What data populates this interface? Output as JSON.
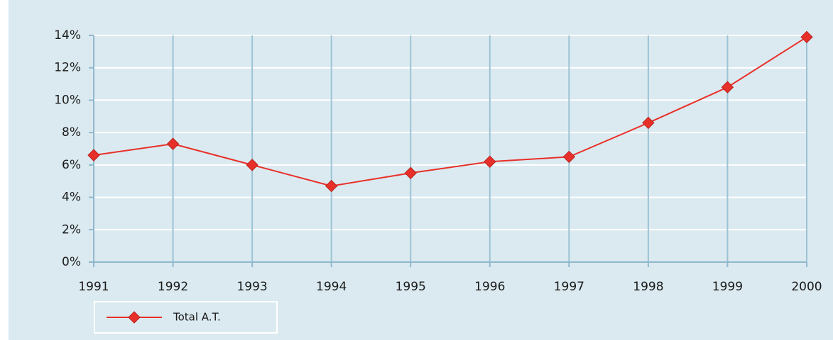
{
  "chart_data": {
    "type": "line",
    "categories": [
      "1991",
      "1992",
      "1993",
      "1994",
      "1995",
      "1996",
      "1997",
      "1998",
      "1999",
      "2000"
    ],
    "series": [
      {
        "name": "Total A.T.",
        "color": "#e8302a",
        "values": [
          6.6,
          7.3,
          6.0,
          4.7,
          5.5,
          6.2,
          6.5,
          8.6,
          10.8,
          13.9
        ]
      }
    ],
    "ylim": [
      0,
      14
    ],
    "yticks": [
      {
        "value": 0,
        "label": "0%"
      },
      {
        "value": 2,
        "label": "2%"
      },
      {
        "value": 4,
        "label": "4%"
      },
      {
        "value": 6,
        "label": "6%"
      },
      {
        "value": 8,
        "label": "8%"
      },
      {
        "value": 10,
        "label": "10%"
      },
      {
        "value": 12,
        "label": "12%"
      },
      {
        "value": 14,
        "label": "14%"
      }
    ],
    "grid": true,
    "legend": "bottom-left"
  }
}
